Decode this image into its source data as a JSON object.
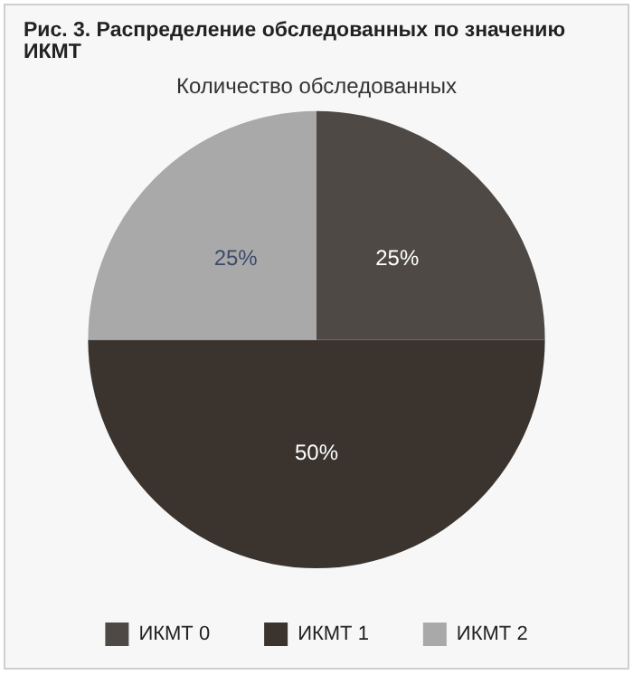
{
  "chart_data": {
    "type": "pie",
    "title": "Рис. 3. Распределение обследованных по значению ИКМТ",
    "subtitle": "Количество обследованных",
    "categories": [
      "ИКМТ 0",
      "ИКМТ 1",
      "ИКМТ 2"
    ],
    "values": [
      25,
      50,
      25
    ],
    "colors": [
      "#4e4944",
      "#3a332e",
      "#a9a9a9"
    ],
    "value_labels": [
      "25%",
      "50%",
      "25%"
    ],
    "legend": "bottom"
  }
}
